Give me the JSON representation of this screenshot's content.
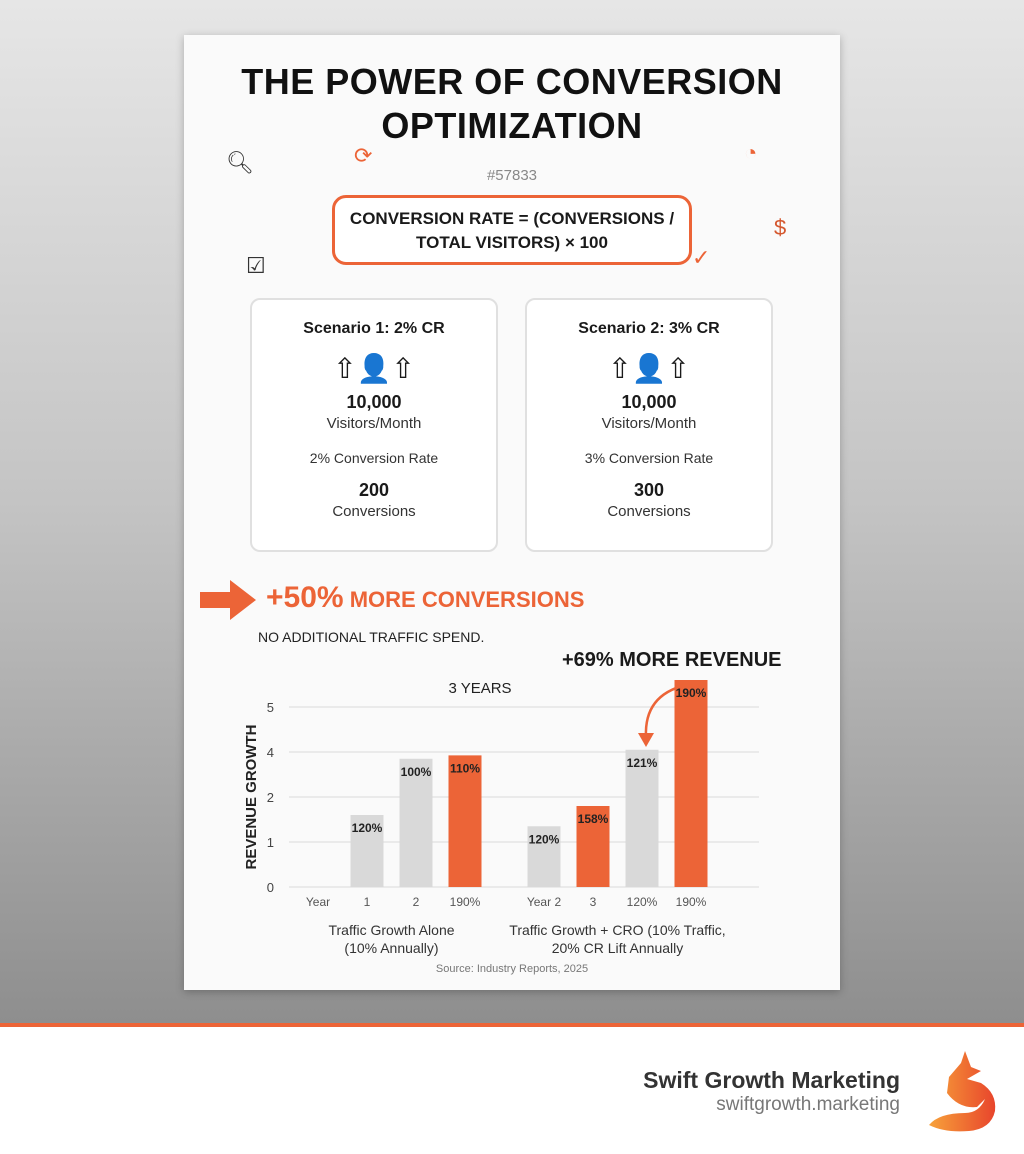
{
  "title": "THE POWER OF CONVERSION OPTIMIZATION",
  "code": "#57833",
  "formula": "CONVERSION RATE = (CONVERSIONS / TOTAL VISITORS) × 100",
  "scenarios": [
    {
      "heading": "Scenario 1: 2% CR",
      "visitors": "10,000",
      "visitors_label": "Visitors/Month",
      "rate": "2% Conversion Rate",
      "conversions": "200",
      "conversions_label": "Conversions"
    },
    {
      "heading": "Scenario 2: 3% CR",
      "visitors": "10,000",
      "visitors_label": "Visitors/Month",
      "rate": "3% Conversion Rate",
      "conversions": "300",
      "conversions_label": "Conversions"
    }
  ],
  "highlight": {
    "pct": "+50%",
    "text": "MORE CONVERSIONS",
    "sub": "NO ADDITIONAL TRAFFIC SPEND."
  },
  "revenue_callout": "+69% MORE REVENUE",
  "colors": {
    "accent": "#ec6437",
    "gray_bar": "#d9d9d9"
  },
  "chart_data": {
    "type": "bar",
    "title": "3 YEARS",
    "ylabel": "REVENUE GROWTH",
    "yticks": [
      "0",
      "1",
      "2",
      "4",
      "5"
    ],
    "grid": true,
    "groups": [
      {
        "label": "Traffic Growth Alone (10% Annually)",
        "categories": [
          "Year",
          "1",
          "2",
          "190%"
        ],
        "values": [
          null,
          1.6,
          3.7,
          3.85
        ],
        "labels": [
          "",
          "120%",
          "100%",
          "110%"
        ],
        "colors": [
          "",
          "gray",
          "gray",
          "orange"
        ]
      },
      {
        "label": "Traffic Growth + CRO (10% Traffic, 20% CR Lift Annually",
        "categories": [
          "Year 2",
          "3",
          "120%",
          "190%"
        ],
        "values": [
          1.35,
          1.8,
          4.05,
          5.6
        ],
        "labels": [
          "120%",
          "158%",
          "121%",
          "190%"
        ],
        "colors": [
          "gray",
          "orange",
          "gray",
          "orange"
        ]
      }
    ]
  },
  "source": "Source: Industry Reports, 2025",
  "brand": {
    "name": "Swift Growth Marketing",
    "url": "swiftgrowth.marketing"
  }
}
